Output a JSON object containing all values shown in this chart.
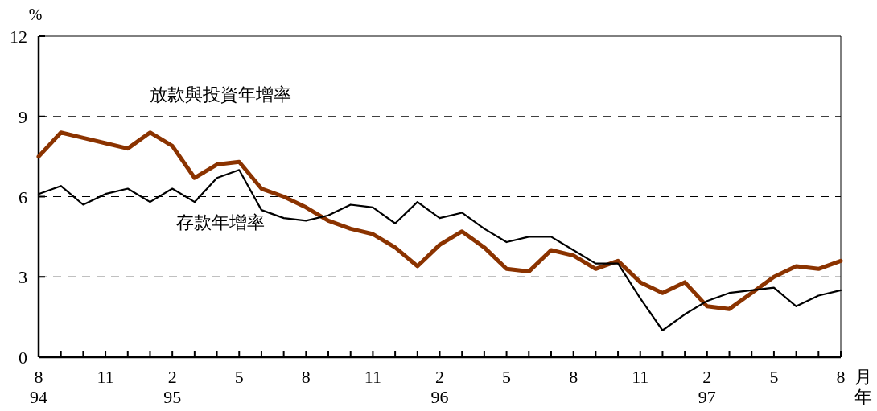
{
  "chart_data": {
    "type": "line",
    "ylabel": "%",
    "xlabel": "月年",
    "categories": [
      "8\n94",
      null,
      null,
      "11",
      null,
      null,
      "2\n95",
      null,
      null,
      "5",
      null,
      null,
      "8",
      null,
      null,
      "11",
      null,
      null,
      "2\n96",
      null,
      null,
      "5",
      null,
      null,
      "8",
      null,
      null,
      "11",
      null,
      null,
      "2\n97",
      null,
      null,
      "5",
      null,
      null,
      "8"
    ],
    "ylim": [
      0,
      12
    ],
    "yticks": [
      0,
      3,
      6,
      9,
      12
    ],
    "grid": "y",
    "legend": false,
    "marker": "none",
    "line_style": "solid",
    "series": [
      {
        "name": "放款與投資年增率",
        "color": "#8b3300",
        "values": [
          7.5,
          8.4,
          8.2,
          8.0,
          7.8,
          8.4,
          7.9,
          6.7,
          7.2,
          7.3,
          6.3,
          6.0,
          5.6,
          5.1,
          4.8,
          4.6,
          4.1,
          3.4,
          4.2,
          4.7,
          4.1,
          3.3,
          3.2,
          4.0,
          3.8,
          3.3,
          3.6,
          2.8,
          2.4,
          2.8,
          1.9,
          1.8,
          2.4,
          3.0,
          3.4,
          3.3,
          3.6
        ]
      },
      {
        "name": "存款年增率",
        "color": "#000000",
        "values": [
          6.1,
          6.4,
          5.7,
          6.1,
          6.3,
          5.8,
          6.3,
          5.8,
          6.7,
          7.0,
          5.5,
          5.2,
          5.1,
          5.3,
          5.7,
          5.6,
          5.0,
          5.8,
          5.2,
          5.4,
          4.8,
          4.3,
          4.5,
          4.5,
          4.0,
          3.5,
          3.5,
          2.2,
          1.0,
          1.6,
          2.1,
          2.4,
          2.5,
          2.6,
          1.9,
          2.3,
          2.5
        ]
      }
    ]
  }
}
